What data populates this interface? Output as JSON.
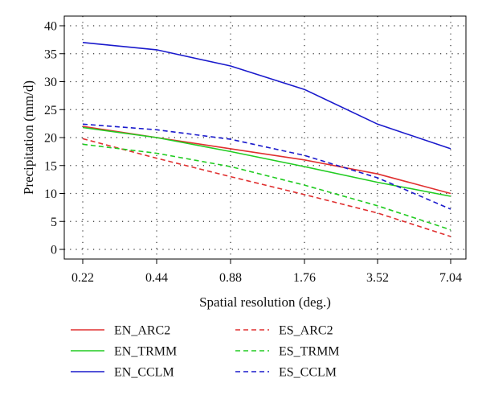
{
  "chart_data": {
    "type": "line",
    "xlabel": "Spatial resolution (deg.)",
    "ylabel": "Precipitation (mm/d)",
    "categories": [
      "0.22",
      "0.44",
      "0.88",
      "1.76",
      "3.52",
      "7.04"
    ],
    "ylim": [
      0,
      40
    ],
    "yticks": [
      0,
      5,
      10,
      15,
      20,
      25,
      30,
      35,
      40
    ],
    "grid": true,
    "legend_position": "bottom",
    "series": [
      {
        "name": "EN_ARC2",
        "values": [
          22.0,
          20.0,
          18.0,
          16.0,
          13.5,
          10.0
        ],
        "color": "#e03030",
        "dash": false
      },
      {
        "name": "ES_ARC2",
        "values": [
          19.8,
          16.3,
          13.0,
          9.8,
          6.5,
          2.3
        ],
        "color": "#e03030",
        "dash": true
      },
      {
        "name": "EN_TRMM",
        "values": [
          21.8,
          20.0,
          17.5,
          14.8,
          12.0,
          9.5
        ],
        "color": "#22cc22",
        "dash": false
      },
      {
        "name": "ES_TRMM",
        "values": [
          18.8,
          17.2,
          14.8,
          11.5,
          7.8,
          3.5
        ],
        "color": "#22cc22",
        "dash": true
      },
      {
        "name": "EN_CCLM",
        "values": [
          37.0,
          35.7,
          32.8,
          28.6,
          22.4,
          18.0
        ],
        "color": "#1a1acc",
        "dash": false
      },
      {
        "name": "ES_CCLM",
        "values": [
          22.4,
          21.4,
          19.7,
          16.8,
          12.8,
          7.2
        ],
        "color": "#1a1acc",
        "dash": true
      }
    ]
  }
}
